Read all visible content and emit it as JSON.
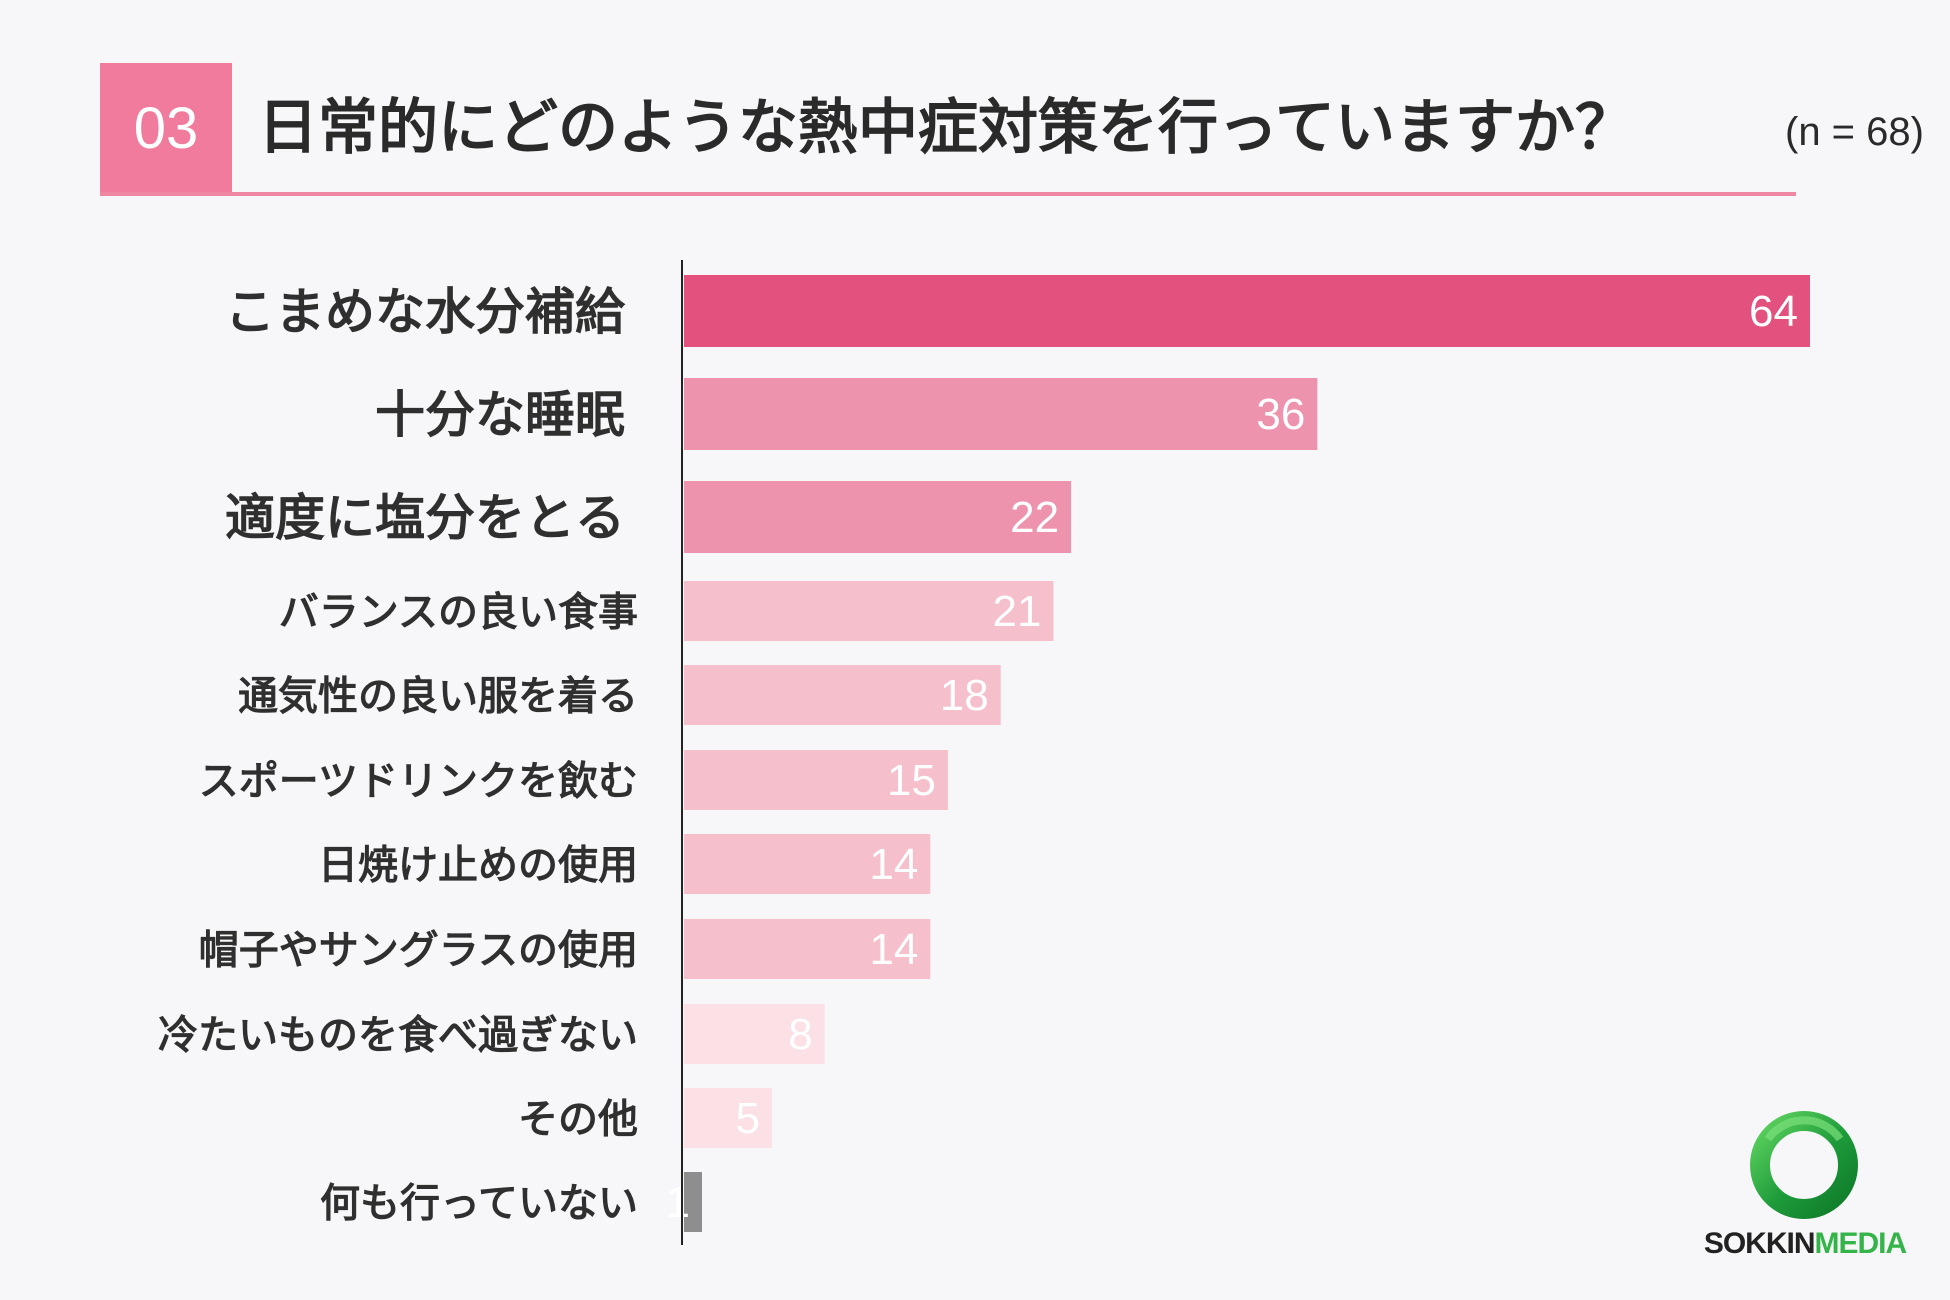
{
  "header": {
    "number": "03",
    "title": "日常的にどのような熱中症対策を行っていますか？",
    "n_label": "(n = 68)"
  },
  "chart_data": {
    "type": "bar",
    "orientation": "horizontal",
    "title": "日常的にどのような熱中症対策を行っていますか？",
    "sample_size": "(n = 68)",
    "categories": [
      "こまめな水分補給",
      "十分な睡眠",
      "適度に塩分をとる",
      "バランスの良い食事",
      "通気性の良い服を着る",
      "スポーツドリンクを飲む",
      "日焼け止めの使用",
      "帽子やサングラスの使用",
      "冷たいものを食べ過ぎない",
      "その他",
      "何も行っていない"
    ],
    "values": [
      64,
      36,
      22,
      21,
      18,
      15,
      14,
      14,
      8,
      5,
      1
    ],
    "xlim": [
      0,
      64
    ],
    "grid": false,
    "legend": "none",
    "data_labels": "inside-end",
    "colors": [
      "#e3527e",
      "#ee93ae",
      "#ee93ae",
      "#f6bfcc",
      "#f6bfcc",
      "#f6bfcc",
      "#f6bfcc",
      "#f6bfcc",
      "#fbe0e6",
      "#fbe0e6",
      "#8e8e8e"
    ]
  },
  "logo": {
    "text_a": "SOKKIN",
    "text_b": "MEDIA",
    "colors": {
      "ring_dark": "#0f7a2a",
      "ring_light": "#5fd35f",
      "text_dark": "#222222",
      "text_green": "#35b44a"
    }
  },
  "colors": {
    "accent": "#f07b9c",
    "rule": "#ee88a2",
    "axis": "#222222",
    "background": "#f7f7fa"
  }
}
